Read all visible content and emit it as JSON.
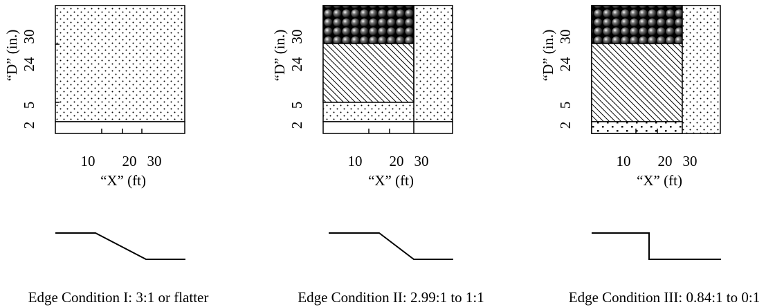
{
  "panels": [
    {
      "caption": "Edge Condition I: 3:1 or flatter",
      "x_axis_title": "“X” (ft)",
      "y_axis_title": "“D” (in.)",
      "x_ticks": [
        "10",
        "20",
        "30"
      ],
      "y_ticks": [
        "2",
        "5",
        "24",
        "30"
      ],
      "profile": "slope 3:1 or flatter"
    },
    {
      "caption": "Edge Condition II: 2.99:1 to 1:1",
      "x_axis_title": "“X” (ft)",
      "y_axis_title": "“D” (in.)",
      "x_ticks": [
        "10",
        "20",
        "30"
      ],
      "y_ticks": [
        "2",
        "5",
        "24",
        "30"
      ],
      "profile": "slope 2.99:1 to 1:1"
    },
    {
      "caption": "Edge Condition III: 0.84:1 to 0:1",
      "x_axis_title": "“X” (ft)",
      "y_axis_title": "“D” (in.)",
      "x_ticks": [
        "10",
        "20",
        "30"
      ],
      "y_ticks": [
        "2",
        "5",
        "24",
        "30"
      ],
      "profile": "vertical drop 0.84:1 to 0:1"
    }
  ]
}
